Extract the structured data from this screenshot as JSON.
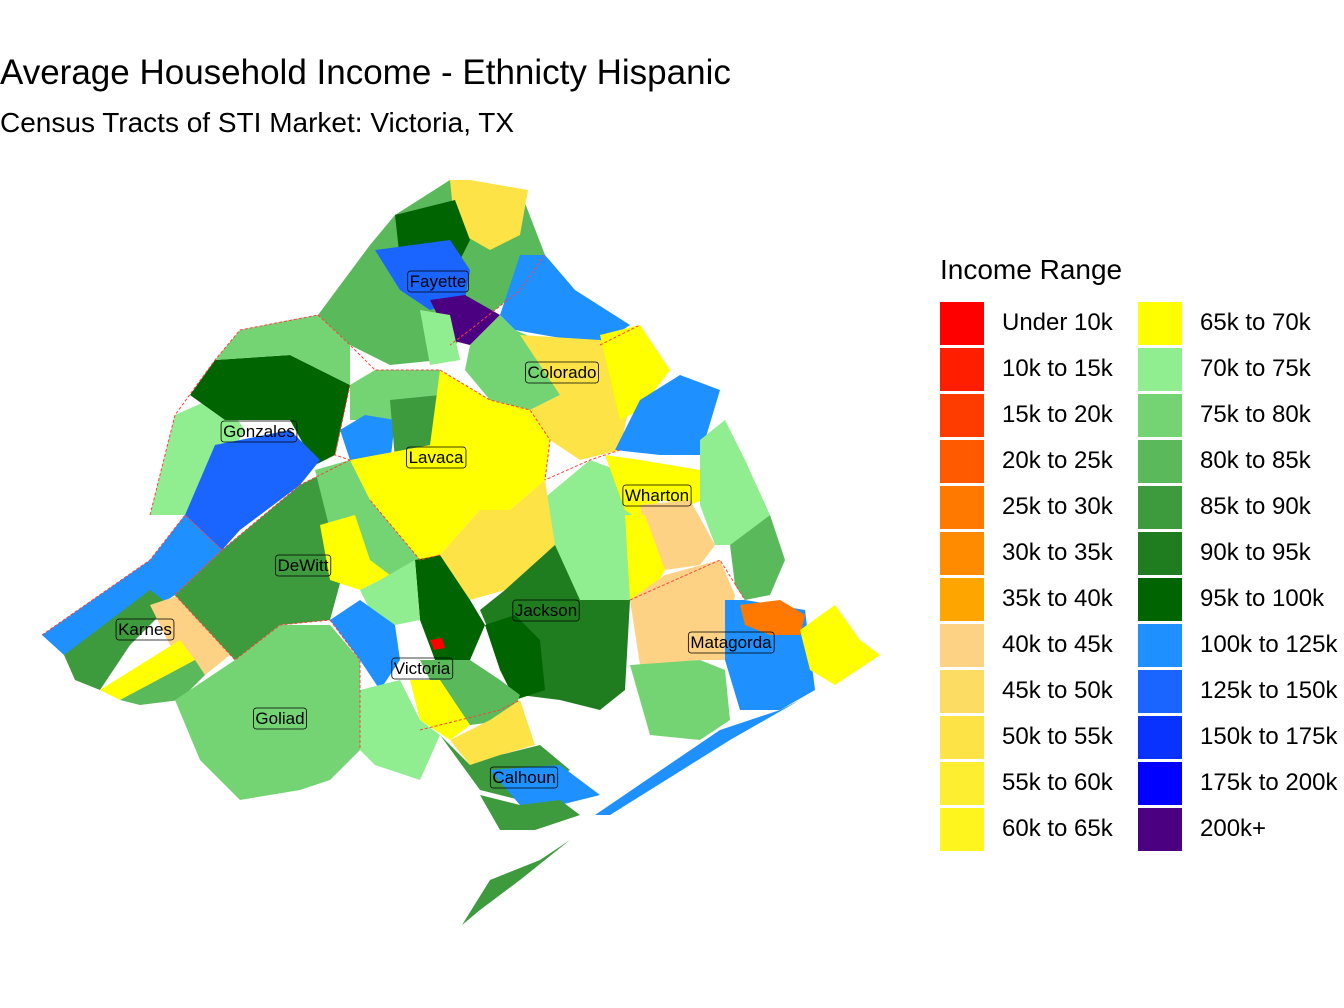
{
  "map": {
    "title": "Average Household Income - Ethnicty Hispanic",
    "subtitle": "Census Tracts of STI Market: Victoria, TX",
    "county_labels": [
      "Fayette",
      "Colorado",
      "Gonzales",
      "Lavaca",
      "Wharton",
      "DeWitt",
      "Jackson",
      "Karnes",
      "Matagorda",
      "Victoria",
      "Goliad",
      "Calhoun"
    ]
  },
  "legend": {
    "title": "Income Range",
    "items": [
      {
        "label": "Under 10k",
        "color": "#ff0000"
      },
      {
        "label": "10k to 15k",
        "color": "#ff1e00"
      },
      {
        "label": "15k to 20k",
        "color": "#ff3c00"
      },
      {
        "label": "20k to 25k",
        "color": "#ff5a00"
      },
      {
        "label": "25k to 30k",
        "color": "#ff7800"
      },
      {
        "label": "30k to 35k",
        "color": "#ff8c00"
      },
      {
        "label": "35k to 40k",
        "color": "#ffa500"
      },
      {
        "label": "40k to 45k",
        "color": "#fdd284"
      },
      {
        "label": "45k to 50k",
        "color": "#fddc64"
      },
      {
        "label": "50k to 55k",
        "color": "#fde346"
      },
      {
        "label": "55k to 60k",
        "color": "#fdee32"
      },
      {
        "label": "60k to 65k",
        "color": "#fef51e"
      },
      {
        "label": "65k to 70k",
        "color": "#ffff00"
      },
      {
        "label": "70k to 75k",
        "color": "#90ee90"
      },
      {
        "label": "75k to 80k",
        "color": "#74d474"
      },
      {
        "label": "80k to 85k",
        "color": "#5ab95a"
      },
      {
        "label": "85k to 90k",
        "color": "#3d9a3d"
      },
      {
        "label": "90k to 95k",
        "color": "#1f7d1f"
      },
      {
        "label": "95k to 100k",
        "color": "#006400"
      },
      {
        "label": "100k to 125k",
        "color": "#1e90ff"
      },
      {
        "label": "125k to 150k",
        "color": "#1a64ff"
      },
      {
        "label": "150k to 175k",
        "color": "#0a32ff"
      },
      {
        "label": "175k to 200k",
        "color": "#0000ff"
      },
      {
        "label": "200k+",
        "color": "#4b0082"
      }
    ]
  }
}
